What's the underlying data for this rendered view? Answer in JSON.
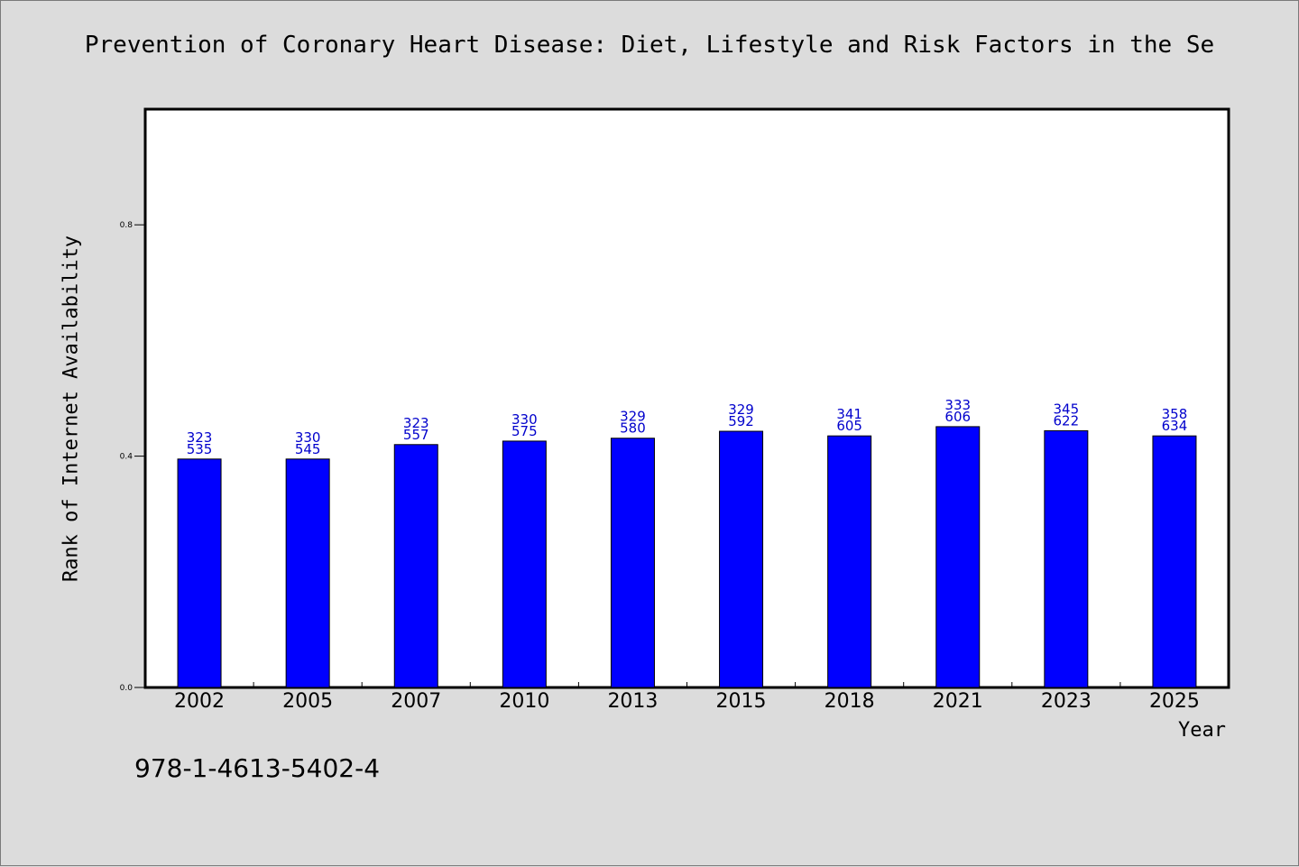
{
  "title": "Prevention of Coronary Heart Disease: Diet, Lifestyle and Risk Factors in the Se",
  "footer_code": "978-1-4613-5402-4",
  "chart_data": {
    "type": "bar",
    "xlabel": "Year",
    "ylabel": "Rank of Internet Availability",
    "ylim": [
      0,
      1.0
    ],
    "yticks": [
      "0.0",
      "0.4",
      "0.8"
    ],
    "categories": [
      "2002",
      "2005",
      "2007",
      "2010",
      "2013",
      "2015",
      "2018",
      "2021",
      "2023",
      "2025"
    ],
    "values": [
      0.395,
      0.395,
      0.42,
      0.426,
      0.431,
      0.443,
      0.435,
      0.451,
      0.444,
      0.435
    ],
    "label_top": [
      "323",
      "330",
      "323",
      "330",
      "329",
      "329",
      "341",
      "333",
      "345",
      "358"
    ],
    "label_bottom": [
      "535",
      "545",
      "557",
      "575",
      "580",
      "592",
      "605",
      "606",
      "622",
      "634"
    ],
    "bar_color": "#0000ff",
    "label_color": "#0000cc",
    "grid": false
  }
}
